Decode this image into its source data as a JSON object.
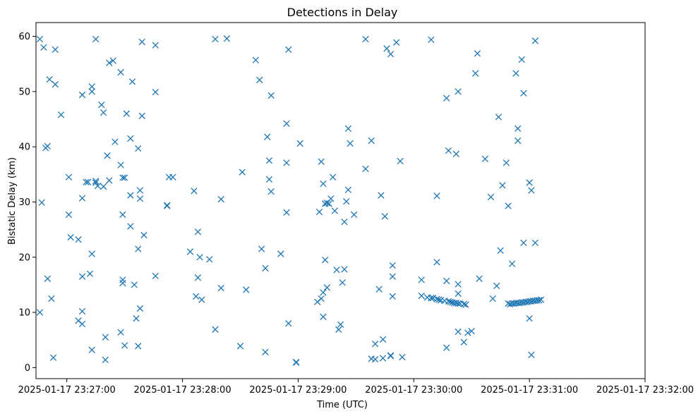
{
  "chart_data": {
    "type": "scatter",
    "title": "Detections in Delay",
    "xlabel": "Time (UTC)",
    "ylabel": "Bistatic Delay (km)",
    "x_axis_type": "time",
    "x_ticks": [
      "2025-01-17 23:27:00",
      "2025-01-17 23:28:00",
      "2025-01-17 23:29:00",
      "2025-01-17 23:30:00",
      "2025-01-17 23:31:00",
      "2025-01-17 23:32:00"
    ],
    "xlim": [
      "2025-01-17 23:26:44",
      "2025-01-17 23:32:00"
    ],
    "y_ticks": [
      0,
      10,
      20,
      30,
      40,
      50,
      60
    ],
    "ylim": [
      -2,
      62.5
    ],
    "grid": false,
    "marker": "x",
    "color": "#1f77b4",
    "points": [
      [
        "23:26:46",
        59.5
      ],
      [
        "23:26:48",
        58.0
      ],
      [
        "23:26:46",
        10.0
      ],
      [
        "23:26:47",
        29.9
      ],
      [
        "23:26:49",
        39.8
      ],
      [
        "23:26:50",
        40.1
      ],
      [
        "23:26:51",
        52.2
      ],
      [
        "23:26:50",
        16.1
      ],
      [
        "23:26:52",
        12.5
      ],
      [
        "23:26:53",
        1.8
      ],
      [
        "23:26:54",
        51.3
      ],
      [
        "23:26:54",
        57.6
      ],
      [
        "23:26:57",
        45.8
      ],
      [
        "23:27:01",
        34.5
      ],
      [
        "23:27:01",
        27.7
      ],
      [
        "23:27:02",
        23.6
      ],
      [
        "23:27:06",
        23.2
      ],
      [
        "23:27:06",
        8.5
      ],
      [
        "23:27:08",
        7.9
      ],
      [
        "23:27:08",
        16.5
      ],
      [
        "23:27:08",
        10.2
      ],
      [
        "23:27:08",
        30.7
      ],
      [
        "23:27:08",
        49.4
      ],
      [
        "23:27:10",
        33.6
      ],
      [
        "23:27:11",
        33.6
      ],
      [
        "23:27:12",
        17.0
      ],
      [
        "23:27:13",
        20.6
      ],
      [
        "23:27:13",
        50.0
      ],
      [
        "23:27:13",
        50.9
      ],
      [
        "23:27:13",
        3.2
      ],
      [
        "23:27:15",
        59.5
      ],
      [
        "23:27:15",
        33.8
      ],
      [
        "23:27:16",
        32.9
      ],
      [
        "23:27:15",
        33.5
      ],
      [
        "23:27:18",
        47.6
      ],
      [
        "23:27:19",
        46.2
      ],
      [
        "23:27:19",
        32.8
      ],
      [
        "23:27:20",
        5.5
      ],
      [
        "23:27:20",
        1.4
      ],
      [
        "23:27:21",
        38.4
      ],
      [
        "23:27:22",
        33.9
      ],
      [
        "23:27:22",
        55.2
      ],
      [
        "23:27:24",
        55.6
      ],
      [
        "23:27:25",
        40.9
      ],
      [
        "23:27:28",
        36.7
      ],
      [
        "23:27:28",
        53.5
      ],
      [
        "23:27:28",
        6.4
      ],
      [
        "23:27:29",
        15.9
      ],
      [
        "23:27:29",
        15.3
      ],
      [
        "23:27:29",
        27.7
      ],
      [
        "23:27:29",
        34.4
      ],
      [
        "23:27:30",
        34.4
      ],
      [
        "23:27:30",
        4.0
      ],
      [
        "23:27:31",
        46.0
      ],
      [
        "23:27:33",
        41.5
      ],
      [
        "23:27:33",
        31.2
      ],
      [
        "23:27:33",
        25.6
      ],
      [
        "23:27:34",
        51.8
      ],
      [
        "23:27:35",
        15.0
      ],
      [
        "23:27:36",
        8.9
      ],
      [
        "23:27:37",
        3.9
      ],
      [
        "23:27:37",
        39.7
      ],
      [
        "23:27:37",
        21.5
      ],
      [
        "23:27:38",
        32.1
      ],
      [
        "23:27:38",
        30.6
      ],
      [
        "23:27:38",
        10.7
      ],
      [
        "23:27:39",
        59.0
      ],
      [
        "23:27:39",
        45.6
      ],
      [
        "23:27:40",
        24.0
      ],
      [
        "23:27:46",
        58.4
      ],
      [
        "23:27:46",
        49.9
      ],
      [
        "23:27:46",
        16.6
      ],
      [
        "23:27:52",
        29.4
      ],
      [
        "23:27:52",
        29.3
      ],
      [
        "23:27:53",
        34.5
      ],
      [
        "23:27:55",
        34.5
      ],
      [
        "23:28:04",
        21.0
      ],
      [
        "23:28:06",
        32.0
      ],
      [
        "23:28:07",
        12.9
      ],
      [
        "23:28:08",
        16.3
      ],
      [
        "23:28:08",
        24.6
      ],
      [
        "23:28:09",
        20.0
      ],
      [
        "23:28:10",
        12.3
      ],
      [
        "23:28:14",
        19.6
      ],
      [
        "23:28:17",
        59.5
      ],
      [
        "23:28:17",
        6.9
      ],
      [
        "23:28:20",
        30.5
      ],
      [
        "23:28:20",
        14.4
      ],
      [
        "23:28:23",
        59.6
      ],
      [
        "23:28:30",
        3.9
      ],
      [
        "23:28:31",
        35.4
      ],
      [
        "23:28:33",
        14.1
      ],
      [
        "23:28:38",
        55.7
      ],
      [
        "23:28:40",
        52.1
      ],
      [
        "23:28:41",
        21.5
      ],
      [
        "23:28:43",
        18.0
      ],
      [
        "23:28:43",
        2.8
      ],
      [
        "23:28:44",
        41.8
      ],
      [
        "23:28:45",
        37.5
      ],
      [
        "23:28:45",
        34.1
      ],
      [
        "23:28:46",
        31.9
      ],
      [
        "23:28:46",
        49.3
      ],
      [
        "23:28:51",
        20.6
      ],
      [
        "23:28:54",
        44.2
      ],
      [
        "23:28:54",
        37.1
      ],
      [
        "23:28:54",
        28.1
      ],
      [
        "23:28:55",
        8.0
      ],
      [
        "23:28:55",
        57.6
      ],
      [
        "23:28:59",
        1.0
      ],
      [
        "23:28:59",
        0.9
      ],
      [
        "23:29:01",
        40.6
      ],
      [
        "23:29:10",
        11.9
      ],
      [
        "23:29:11",
        28.2
      ],
      [
        "23:29:12",
        37.3
      ],
      [
        "23:29:12",
        12.5
      ],
      [
        "23:29:13",
        13.6
      ],
      [
        "23:29:13",
        9.2
      ],
      [
        "23:29:13",
        33.3
      ],
      [
        "23:29:14",
        29.7
      ],
      [
        "23:29:14",
        19.5
      ],
      [
        "23:29:15",
        29.8
      ],
      [
        "23:29:15",
        14.5
      ],
      [
        "23:29:16",
        29.7
      ],
      [
        "23:29:17",
        30.6
      ],
      [
        "23:29:18",
        34.5
      ],
      [
        "23:29:19",
        28.4
      ],
      [
        "23:29:20",
        17.7
      ],
      [
        "23:29:21",
        6.9
      ],
      [
        "23:29:22",
        7.8
      ],
      [
        "23:29:23",
        15.4
      ],
      [
        "23:29:24",
        17.8
      ],
      [
        "23:29:24",
        26.4
      ],
      [
        "23:29:25",
        30.1
      ],
      [
        "23:29:26",
        32.2
      ],
      [
        "23:29:26",
        43.3
      ],
      [
        "23:29:27",
        40.6
      ],
      [
        "23:29:29",
        27.7
      ],
      [
        "23:29:35",
        59.5
      ],
      [
        "23:29:35",
        36.0
      ],
      [
        "23:29:38",
        41.1
      ],
      [
        "23:29:38",
        1.6
      ],
      [
        "23:29:40",
        4.3
      ],
      [
        "23:29:40",
        1.5
      ],
      [
        "23:29:42",
        14.2
      ],
      [
        "23:29:43",
        31.2
      ],
      [
        "23:29:44",
        5.1
      ],
      [
        "23:29:44",
        1.7
      ],
      [
        "23:29:45",
        27.4
      ],
      [
        "23:29:46",
        57.8
      ],
      [
        "23:29:48",
        56.8
      ],
      [
        "23:29:48",
        2.1
      ],
      [
        "23:29:48",
        2.2
      ],
      [
        "23:29:49",
        18.5
      ],
      [
        "23:29:49",
        16.5
      ],
      [
        "23:29:49",
        12.9
      ],
      [
        "23:29:51",
        58.9
      ],
      [
        "23:29:53",
        37.4
      ],
      [
        "23:29:54",
        1.9
      ],
      [
        "23:30:04",
        15.9
      ],
      [
        "23:30:04",
        13.0
      ],
      [
        "23:30:07",
        12.7
      ],
      [
        "23:30:09",
        12.6
      ],
      [
        "23:30:10",
        12.6
      ],
      [
        "23:30:12",
        12.4
      ],
      [
        "23:30:13",
        12.3
      ],
      [
        "23:30:14",
        12.2
      ],
      [
        "23:30:16",
        12.1
      ],
      [
        "23:30:18",
        12.0
      ],
      [
        "23:30:19",
        11.9
      ],
      [
        "23:30:20",
        11.8
      ],
      [
        "23:30:21",
        11.7
      ],
      [
        "23:30:22",
        11.7
      ],
      [
        "23:30:23",
        11.6
      ],
      [
        "23:30:24",
        11.6
      ],
      [
        "23:30:26",
        11.5
      ],
      [
        "23:30:27",
        11.4
      ],
      [
        "23:30:09",
        59.4
      ],
      [
        "23:30:12",
        31.1
      ],
      [
        "23:30:12",
        19.1
      ],
      [
        "23:30:17",
        48.8
      ],
      [
        "23:30:18",
        39.3
      ],
      [
        "23:30:17",
        15.7
      ],
      [
        "23:30:17",
        3.6
      ],
      [
        "23:30:22",
        38.7
      ],
      [
        "23:30:23",
        50.0
      ],
      [
        "23:30:23",
        15.1
      ],
      [
        "23:30:23",
        13.4
      ],
      [
        "23:30:23",
        6.5
      ],
      [
        "23:30:26",
        4.6
      ],
      [
        "23:30:28",
        6.3
      ],
      [
        "23:30:30",
        6.6
      ],
      [
        "23:30:32",
        53.3
      ],
      [
        "23:30:33",
        56.9
      ],
      [
        "23:30:34",
        16.1
      ],
      [
        "23:30:37",
        37.8
      ],
      [
        "23:30:40",
        30.9
      ],
      [
        "23:30:41",
        12.5
      ],
      [
        "23:30:43",
        14.8
      ],
      [
        "23:30:44",
        45.4
      ],
      [
        "23:30:45",
        21.2
      ],
      [
        "23:30:46",
        33.0
      ],
      [
        "23:30:48",
        37.1
      ],
      [
        "23:30:49",
        29.3
      ],
      [
        "23:30:49",
        11.6
      ],
      [
        "23:30:50",
        11.5
      ],
      [
        "23:30:51",
        11.6
      ],
      [
        "23:30:52",
        11.6
      ],
      [
        "23:30:53",
        11.7
      ],
      [
        "23:30:54",
        11.7
      ],
      [
        "23:30:55",
        11.7
      ],
      [
        "23:30:56",
        11.8
      ],
      [
        "23:30:57",
        11.8
      ],
      [
        "23:30:58",
        11.9
      ],
      [
        "23:30:59",
        11.9
      ],
      [
        "23:31:00",
        12.0
      ],
      [
        "23:31:01",
        12.0
      ],
      [
        "23:31:02",
        12.1
      ],
      [
        "23:31:03",
        12.1
      ],
      [
        "23:31:04",
        12.2
      ],
      [
        "23:31:05",
        12.2
      ],
      [
        "23:31:06",
        12.3
      ],
      [
        "23:30:51",
        18.8
      ],
      [
        "23:30:53",
        53.3
      ],
      [
        "23:30:54",
        43.3
      ],
      [
        "23:30:54",
        41.1
      ],
      [
        "23:30:56",
        55.8
      ],
      [
        "23:30:57",
        49.7
      ],
      [
        "23:30:57",
        22.6
      ],
      [
        "23:31:00",
        8.9
      ],
      [
        "23:31:00",
        33.5
      ],
      [
        "23:31:01",
        32.1
      ],
      [
        "23:31:01",
        2.3
      ],
      [
        "23:31:03",
        59.2
      ],
      [
        "23:31:03",
        22.6
      ]
    ]
  }
}
